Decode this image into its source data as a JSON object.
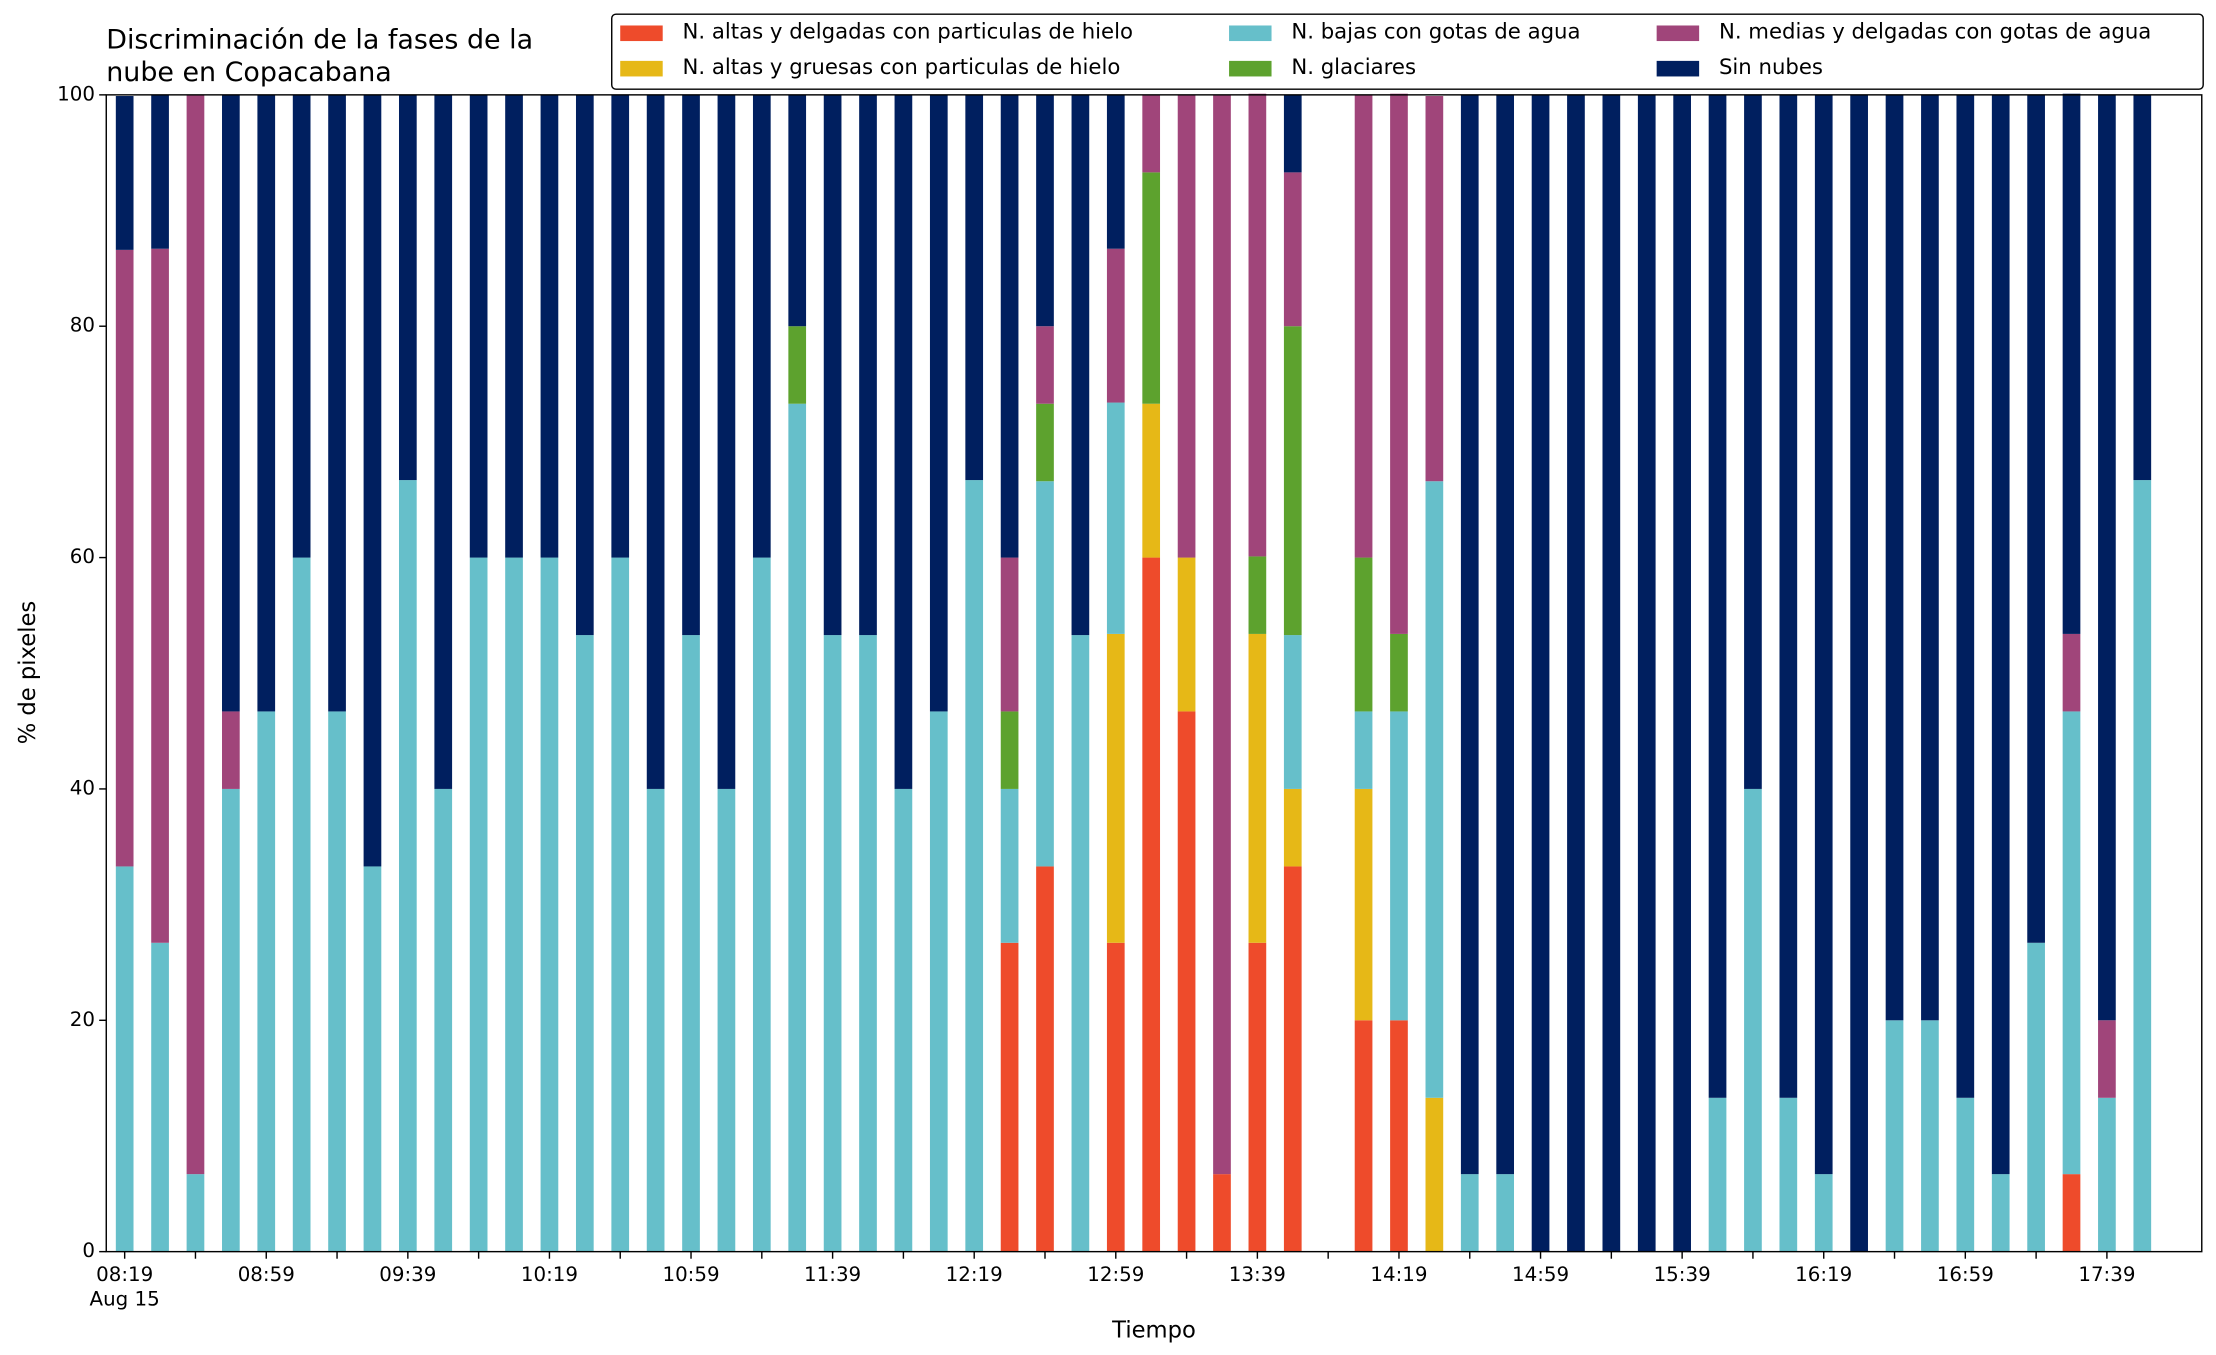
{
  "chart_data": {
    "type": "stacked_bar",
    "title": [
      "Discriminación de la fases de la",
      "nube en Copacabana"
    ],
    "xlabel": "Tiempo",
    "ylabel": "% de pixeles",
    "x_sublabel": "Aug 15",
    "categories": [
      "08:19",
      null,
      null,
      null,
      "08:59",
      null,
      null,
      null,
      "09:39",
      null,
      null,
      null,
      "10:19",
      null,
      null,
      null,
      "10:59",
      null,
      null,
      null,
      "11:39",
      null,
      null,
      null,
      "12:19",
      null,
      null,
      null,
      "12:59",
      null,
      null,
      null,
      "13:39",
      null,
      null,
      null,
      "14:19",
      null,
      null,
      null,
      "14:59",
      null,
      null,
      null,
      "15:39",
      null,
      null,
      null,
      "16:19",
      null,
      null,
      null,
      "16:59",
      null,
      null,
      null,
      "17:39",
      null
    ],
    "ylim": [
      0,
      100
    ],
    "yticks": [
      0,
      20,
      40,
      60,
      80,
      100
    ],
    "legend": "top",
    "series": [
      {
        "name": "N. altas y delgadas con particulas de hielo",
        "color": "#ee4b2b",
        "values": [
          0,
          0,
          0,
          0,
          0,
          0,
          0,
          0,
          0,
          0,
          0,
          0,
          0,
          0,
          0,
          0,
          0,
          0,
          0,
          0,
          0,
          0,
          0,
          0,
          0,
          26.7,
          33.3,
          0,
          26.7,
          60,
          46.7,
          6.7,
          26.7,
          33.3,
          null,
          20,
          20,
          0,
          0,
          0,
          0,
          0,
          0,
          0,
          0,
          0,
          0,
          0,
          0,
          0,
          0,
          0,
          0,
          0,
          0,
          6.7,
          0,
          0
        ]
      },
      {
        "name": "N. altas y gruesas con particulas de hielo",
        "color": "#e6b817",
        "values": [
          0,
          0,
          0,
          0,
          0,
          0,
          0,
          0,
          0,
          0,
          0,
          0,
          0,
          0,
          0,
          0,
          0,
          0,
          0,
          0,
          0,
          0,
          0,
          0,
          0,
          0,
          0,
          0,
          26.7,
          13.3,
          13.3,
          0,
          26.7,
          6.7,
          null,
          20,
          0,
          13.3,
          0,
          0,
          0,
          0,
          0,
          0,
          0,
          0,
          0,
          0,
          0,
          0,
          0,
          0,
          0,
          0,
          0,
          0,
          0,
          0
        ]
      },
      {
        "name": "N. bajas con gotas de agua",
        "color": "#66bfca",
        "values": [
          33.3,
          26.7,
          6.7,
          40,
          46.7,
          60,
          46.7,
          33.3,
          66.7,
          40,
          60,
          60,
          60,
          53.3,
          60,
          40,
          53.3,
          40,
          60,
          73.3,
          53.3,
          53.3,
          40,
          46.7,
          66.7,
          13.3,
          33.3,
          53.3,
          20,
          0,
          0,
          0,
          0,
          13.3,
          null,
          6.7,
          26.7,
          53.3,
          6.7,
          6.7,
          0,
          0,
          0,
          0,
          0,
          13.3,
          40,
          13.3,
          6.7,
          0,
          20,
          20,
          13.3,
          6.7,
          26.7,
          40,
          13.3,
          66.7
        ]
      },
      {
        "name": "N. glaciares",
        "color": "#5da22e",
        "values": [
          0,
          0,
          0,
          0,
          0,
          0,
          0,
          0,
          0,
          0,
          0,
          0,
          0,
          0,
          0,
          0,
          0,
          0,
          0,
          6.7,
          0,
          0,
          0,
          0,
          0,
          6.7,
          6.7,
          0,
          0,
          20,
          0,
          0,
          6.7,
          26.7,
          null,
          13.3,
          6.7,
          0,
          0,
          0,
          0,
          0,
          0,
          0,
          0,
          0,
          0,
          0,
          0,
          0,
          0,
          0,
          0,
          0,
          0,
          0,
          0,
          0
        ]
      },
      {
        "name": "N. medias y delgadas con gotas de agua",
        "color": "#a0457a",
        "values": [
          53.3,
          60,
          93.3,
          6.7,
          0,
          0,
          0,
          0,
          0,
          0,
          0,
          0,
          0,
          0,
          0,
          0,
          0,
          0,
          0,
          0,
          0,
          0,
          0,
          0,
          0,
          13.3,
          6.7,
          0,
          13.3,
          6.7,
          40,
          93.3,
          40,
          13.3,
          null,
          40,
          46.7,
          33.3,
          0,
          0,
          0,
          0,
          0,
          0,
          0,
          0,
          0,
          0,
          0,
          0,
          0,
          0,
          0,
          0,
          0,
          6.7,
          6.7,
          0
        ]
      },
      {
        "name": "Sin nubes",
        "color": "#001f5f",
        "values": [
          13.3,
          13.3,
          0,
          53.3,
          53.3,
          40,
          53.3,
          66.7,
          33.3,
          60,
          40,
          40,
          40,
          46.7,
          40,
          60,
          46.7,
          60,
          40,
          20,
          46.7,
          46.7,
          60,
          53.3,
          33.3,
          40,
          20,
          46.7,
          13.3,
          0,
          0,
          0,
          0,
          6.7,
          null,
          0,
          0,
          0,
          93.3,
          93.3,
          100,
          100,
          100,
          100,
          100,
          86.7,
          60,
          86.7,
          93.3,
          100,
          80,
          80,
          86.7,
          93.3,
          73.3,
          46.7,
          80,
          33.3
        ]
      }
    ]
  }
}
